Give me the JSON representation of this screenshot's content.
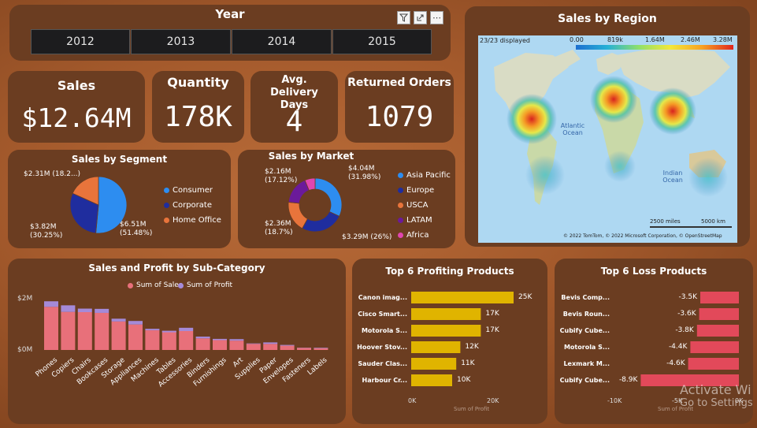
{
  "year_slicer": {
    "title": "Year",
    "years": [
      "2012",
      "2013",
      "2014",
      "2015"
    ]
  },
  "kpis": {
    "sales": {
      "label": "Sales",
      "value": "$12.64M"
    },
    "quantity": {
      "label": "Quantity",
      "value": "178K"
    },
    "delivery": {
      "label": "Avg. Delivery Days",
      "value": "4"
    },
    "returns": {
      "label": "Returned Orders",
      "value": "1079"
    }
  },
  "map": {
    "title": "Sales by Region",
    "displayed": "23/23 displayed",
    "scale_labels": [
      "0.00",
      "819k",
      "1.64M",
      "2.46M",
      "3.28M"
    ],
    "ocean_labels": [
      "Atlantic Ocean",
      "Indian Ocean"
    ],
    "scale_bar": [
      "2500 miles",
      "5000 km"
    ],
    "copyright": "© 2022 TomTom, © 2022 Microsoft Corporation, © OpenStreetMap"
  },
  "segment_chart": {
    "title": "Sales by Segment",
    "legend": [
      "Consumer",
      "Corporate",
      "Home Office"
    ],
    "colors": [
      "#2d8df0",
      "#1f2d9e",
      "#e8743b"
    ],
    "labels": {
      "consumer": "$6.51M (51.48%)",
      "corporate": "$3.82M (30.25%)",
      "home_office": "$2.31M (18.2...)"
    }
  },
  "market_chart": {
    "title": "Sales by Market",
    "legend": [
      "Asia Pacific",
      "Europe",
      "USCA",
      "LATAM",
      "Africa"
    ],
    "colors": [
      "#2d8df0",
      "#1f2d9e",
      "#e8743b",
      "#6b1a9a",
      "#e046b0"
    ],
    "labels": {
      "asia": "$4.04M (31.98%)",
      "europe": "$3.29M (26%)",
      "usca": "$2.36M (18.7%)",
      "latam": "$2.16M (17.12%)"
    }
  },
  "subcat_chart": {
    "title": "Sales and Profit by Sub-Category",
    "legend": [
      "Sum of Sales",
      "Sum of Profit"
    ],
    "axis_labels": [
      "$2M",
      "$0M"
    ]
  },
  "top_profit": {
    "title": "Top 6 Profiting Products",
    "xlabel": "Sum of Profit",
    "ticks": [
      "0K",
      "20K"
    ]
  },
  "top_loss": {
    "title": "Top 6 Loss Products",
    "xlabel": "Sum of Profit",
    "ticks": [
      "-10K",
      "-5K",
      "0K"
    ]
  },
  "watermark": {
    "line1": "Activate Wi",
    "line2": "Go to Settings"
  },
  "chart_data": [
    {
      "type": "pie",
      "title": "Sales by Segment",
      "categories": [
        "Consumer",
        "Corporate",
        "Home Office"
      ],
      "values": [
        6.51,
        3.82,
        2.31
      ],
      "unit": "$M"
    },
    {
      "type": "pie",
      "title": "Sales by Market",
      "categories": [
        "Asia Pacific",
        "Europe",
        "USCA",
        "LATAM",
        "Africa"
      ],
      "values": [
        4.04,
        3.29,
        2.36,
        2.16,
        0.79
      ],
      "unit": "$M"
    },
    {
      "type": "bar",
      "title": "Sales and Profit by Sub-Category",
      "categories": [
        "Phones",
        "Copiers",
        "Chairs",
        "Bookcases",
        "Storage",
        "Appliances",
        "Machines",
        "Tables",
        "Accessories",
        "Binders",
        "Furnishings",
        "Art",
        "Supplies",
        "Paper",
        "Envelopes",
        "Fasteners",
        "Labels"
      ],
      "series": [
        {
          "name": "Sum of Sales",
          "values": [
            1.71,
            1.51,
            1.5,
            1.47,
            1.13,
            1.01,
            0.78,
            0.76,
            0.75,
            0.46,
            0.39,
            0.37,
            0.24,
            0.24,
            0.17,
            0.08,
            0.07
          ]
        },
        {
          "name": "Sum of Profit",
          "values": [
            0.22,
            0.26,
            0.14,
            0.16,
            0.11,
            0.14,
            0.06,
            -0.06,
            0.13,
            0.07,
            0.05,
            0.06,
            0.02,
            0.06,
            0.03,
            0.01,
            0.02
          ]
        }
      ],
      "ylim": [
        0,
        2
      ]
    },
    {
      "type": "bar",
      "title": "Top 6 Profiting Products",
      "categories": [
        "Canon imag...",
        "Cisco Smart...",
        "Motorola S...",
        "Hoover Stov...",
        "Sauder Clas...",
        "Harbour Cr..."
      ],
      "values": [
        25,
        17,
        17,
        12,
        11,
        10
      ],
      "value_labels": [
        "25K",
        "17K",
        "17K",
        "12K",
        "11K",
        "10K"
      ],
      "xlim": [
        0,
        25
      ]
    },
    {
      "type": "bar",
      "title": "Top 6 Loss Products",
      "categories": [
        "Bevis Comp...",
        "Bevis Roun...",
        "Cubify Cube...",
        "Motorola S...",
        "Lexmark M...",
        "Cubify Cube..."
      ],
      "values": [
        -3.5,
        -3.6,
        -3.8,
        -4.4,
        -4.6,
        -8.9
      ],
      "value_labels": [
        "-3.5K",
        "-3.6K",
        "-3.8K",
        "-4.4K",
        "-4.6K",
        "-8.9K"
      ],
      "xlim": [
        -10,
        0
      ]
    }
  ]
}
